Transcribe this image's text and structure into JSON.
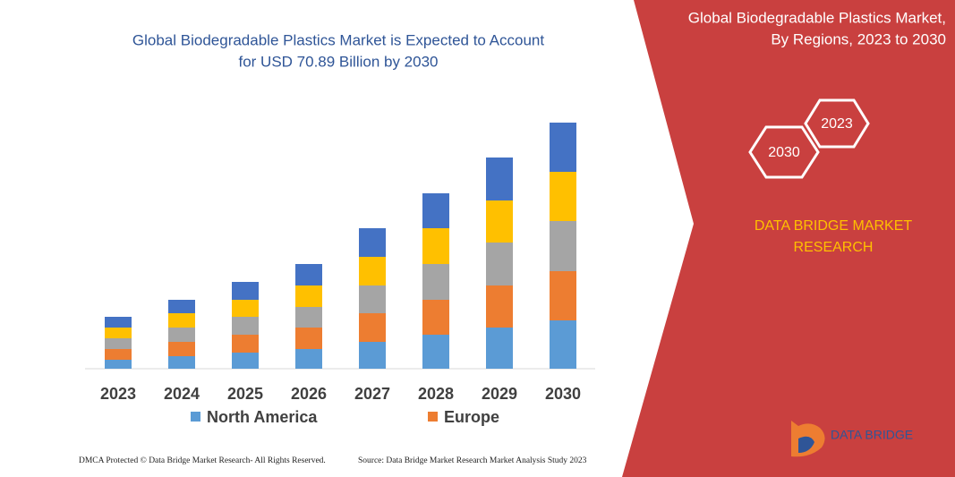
{
  "chart_data": {
    "type": "stacked-bar",
    "title": [
      "Global Biodegradable Plastics Market is Expected to Account",
      "for USD 70.89 Billion by 2030"
    ],
    "categories": [
      "2023",
      "2024",
      "2025",
      "2026",
      "2027",
      "2028",
      "2029",
      "2030"
    ],
    "series": [
      {
        "name": "North America",
        "color": "#5b9bd5",
        "values": [
          10,
          14,
          18,
          22,
          30,
          38,
          46,
          54
        ]
      },
      {
        "name": "Europe",
        "color": "#ed7d31",
        "values": [
          12,
          16,
          20,
          24,
          32,
          39,
          47,
          55
        ]
      },
      {
        "color": "#a5a5a5",
        "values": [
          12,
          16,
          20,
          23,
          31,
          40,
          48,
          56
        ]
      },
      {
        "color": "#ffc000",
        "values": [
          12,
          16,
          19,
          24,
          32,
          40,
          47,
          55
        ]
      },
      {
        "color": "#4472c4",
        "values": [
          12,
          15,
          20,
          24,
          32,
          39,
          48,
          55
        ]
      }
    ]
  },
  "panel": {
    "title": [
      "Global Biodegradable Plastics Market,",
      "By Regions, 2023 to 2030"
    ],
    "hex_start": "2023",
    "hex_end": "2030",
    "brand": [
      "DATA BRIDGE MARKET",
      "RESEARCH"
    ]
  },
  "footer": {
    "left": "DMCA Protected © Data Bridge Market Research- All Rights Reserved.",
    "right": "Source: Data Bridge Market Research  Market Analysis Study 2023"
  },
  "logo": {
    "text": "DATA BRIDGE"
  }
}
